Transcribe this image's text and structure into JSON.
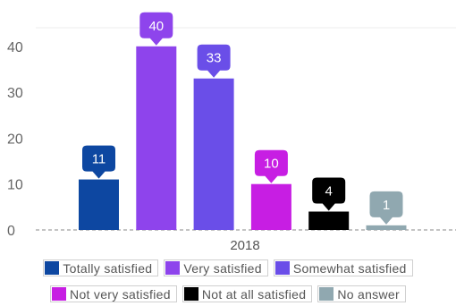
{
  "chart_data": {
    "type": "bar",
    "categories": [
      "2018"
    ],
    "ylim": [
      0,
      45
    ],
    "yticks": [
      0,
      10,
      20,
      30,
      40
    ],
    "grid": false,
    "legend_position": "bottom",
    "series": [
      {
        "name": "Totally satisfied",
        "values": [
          11
        ],
        "color": "#0d47a1"
      },
      {
        "name": "Very satisfied",
        "values": [
          40
        ],
        "color": "#8e44ec"
      },
      {
        "name": "Somewhat satisfied",
        "values": [
          33
        ],
        "color": "#6a4ee8"
      },
      {
        "name": "Not very satisfied",
        "values": [
          10
        ],
        "color": "#c71ee3"
      },
      {
        "name": "Not at all satisfied",
        "values": [
          4
        ],
        "color": "#000000"
      },
      {
        "name": "No answer",
        "values": [
          1
        ],
        "color": "#90a8b0"
      }
    ]
  }
}
